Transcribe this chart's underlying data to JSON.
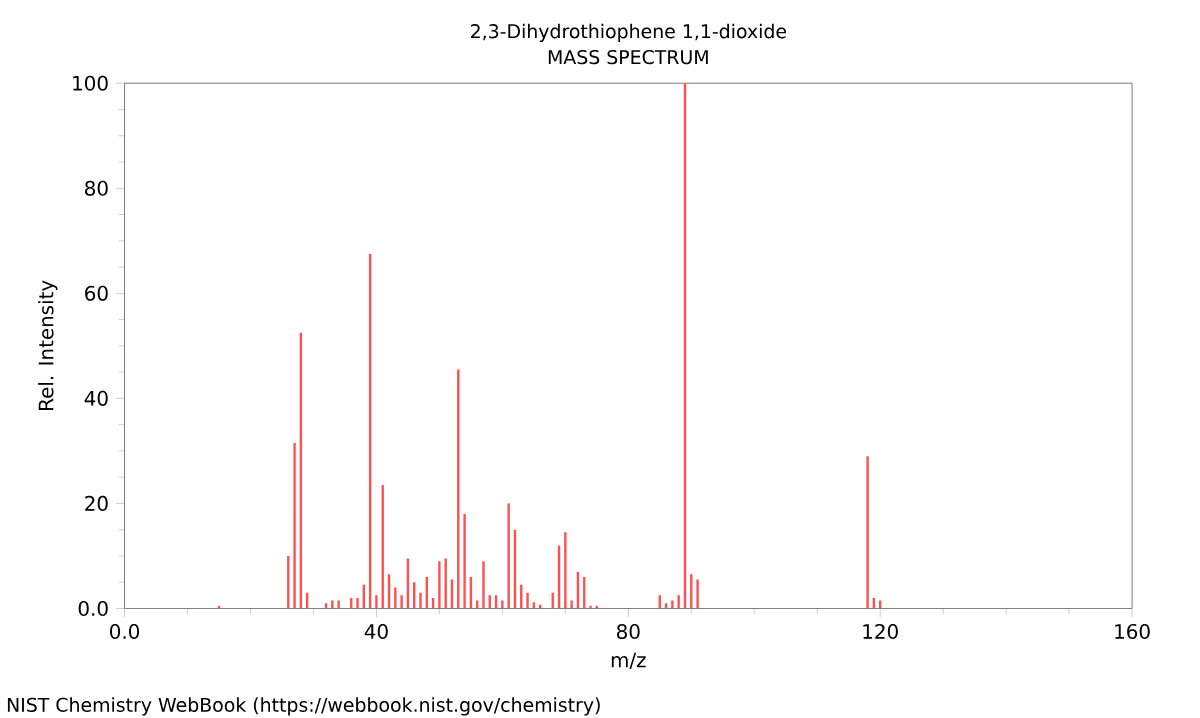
{
  "chart_data": {
    "type": "bar",
    "title": "2,3-Dihydrothiophene 1,1-dioxide",
    "subtitle": "MASS SPECTRUM",
    "xlabel": "m/z",
    "ylabel": "Rel. Intensity",
    "x": [
      15,
      26,
      27,
      28,
      29,
      32,
      33,
      34,
      36,
      37,
      38,
      39,
      40,
      41,
      42,
      43,
      44,
      45,
      46,
      47,
      48,
      49,
      50,
      51,
      52,
      53,
      54,
      55,
      56,
      57,
      58,
      59,
      60,
      61,
      62,
      63,
      64,
      65,
      66,
      68,
      69,
      70,
      71,
      72,
      73,
      74,
      75,
      85,
      86,
      87,
      88,
      89,
      90,
      91,
      118,
      119,
      120
    ],
    "values": [
      0.5,
      10,
      31.5,
      52.5,
      3,
      1,
      1.5,
      1.5,
      2,
      2,
      4.5,
      67.5,
      2.5,
      23.5,
      6.5,
      4,
      2.5,
      9.5,
      5,
      3,
      6,
      2,
      9,
      9.5,
      5.5,
      45.5,
      18,
      6,
      1.5,
      9,
      2.5,
      2.5,
      1.5,
      20,
      15,
      4.5,
      3,
      1.2,
      0.7,
      3,
      12,
      14.5,
      1.5,
      7,
      6,
      0.5,
      0.5,
      2.5,
      1,
      1.5,
      2.5,
      100,
      6.5,
      5.5,
      29,
      2,
      1.5
    ],
    "color": "#ff5050",
    "xlim": [
      0,
      160
    ],
    "ylim": [
      0,
      100
    ],
    "xticks": [
      {
        "value": 0,
        "label": "0.0"
      },
      40,
      80,
      120,
      160
    ],
    "yticks": [
      {
        "value": 0,
        "label": "0.0"
      },
      20,
      40,
      60,
      80,
      100
    ],
    "annotations": [
      "NIST Chemistry WebBook (https://webbook.nist.gov/chemistry)"
    ]
  }
}
